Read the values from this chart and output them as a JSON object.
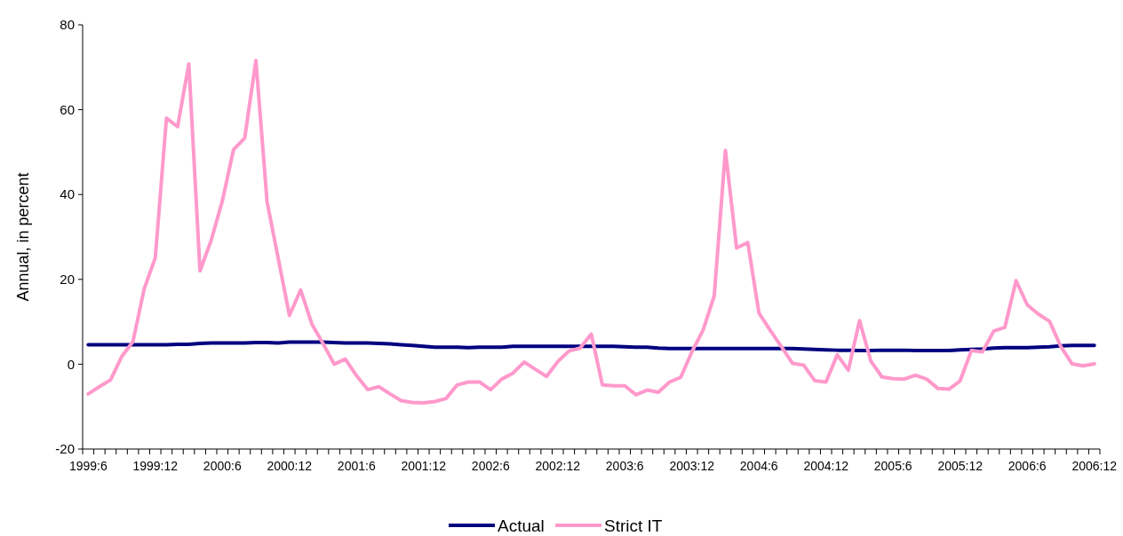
{
  "chart_data": {
    "type": "line",
    "ylabel": "Annual, in percent",
    "categories": [
      "1999:6",
      null,
      null,
      null,
      null,
      null,
      "1999:12",
      null,
      null,
      null,
      null,
      null,
      "2000:6",
      null,
      null,
      null,
      null,
      null,
      "2000:12",
      null,
      null,
      null,
      null,
      null,
      "2001:6",
      null,
      null,
      null,
      null,
      null,
      "2001:12",
      null,
      null,
      null,
      null,
      null,
      "2002:6",
      null,
      null,
      null,
      null,
      null,
      "2002:12",
      null,
      null,
      null,
      null,
      null,
      "2003:6",
      null,
      null,
      null,
      null,
      null,
      "2003:12",
      null,
      null,
      null,
      null,
      null,
      "2004:6",
      null,
      null,
      null,
      null,
      null,
      "2004:12",
      null,
      null,
      null,
      null,
      null,
      "2005:6",
      null,
      null,
      null,
      null,
      null,
      "2005:12",
      null,
      null,
      null,
      null,
      null,
      "2006:6",
      null,
      null,
      null,
      null,
      null,
      "2006:12"
    ],
    "series": [
      {
        "name": "Actual",
        "color": "#000080",
        "values": [
          4.6,
          4.6,
          4.6,
          4.6,
          4.6,
          4.6,
          4.6,
          4.6,
          4.7,
          4.7,
          4.9,
          5.0,
          5.0,
          5.0,
          5.0,
          5.1,
          5.1,
          5.0,
          5.2,
          5.2,
          5.2,
          5.2,
          5.1,
          5.0,
          5.0,
          5.0,
          4.9,
          4.8,
          4.6,
          4.4,
          4.2,
          4.0,
          4.0,
          4.0,
          3.9,
          4.0,
          4.0,
          4.0,
          4.2,
          4.2,
          4.2,
          4.2,
          4.2,
          4.2,
          4.2,
          4.2,
          4.2,
          4.2,
          4.1,
          4.0,
          4.0,
          3.8,
          3.7,
          3.7,
          3.7,
          3.7,
          3.7,
          3.7,
          3.7,
          3.7,
          3.7,
          3.7,
          3.7,
          3.7,
          3.6,
          3.5,
          3.4,
          3.3,
          3.3,
          3.2,
          3.2,
          3.3,
          3.3,
          3.3,
          3.2,
          3.2,
          3.2,
          3.2,
          3.4,
          3.5,
          3.6,
          3.8,
          3.9,
          3.9,
          3.9,
          4.0,
          4.1,
          4.3,
          4.4,
          4.4,
          4.4
        ]
      },
      {
        "name": "Strict IT",
        "color": "#ff99cc",
        "values": [
          -7.0,
          -5.3,
          -3.7,
          1.8,
          5.3,
          17.7,
          25.1,
          58,
          56,
          70.8,
          22,
          29.2,
          38.5,
          50.6,
          53.3,
          71.6,
          38.3,
          24.9,
          11.5,
          17.5,
          9.5,
          4.9,
          0,
          1.2,
          -2.7,
          -6.0,
          -5.3,
          -7.0,
          -8.6,
          -9.0,
          -9.1,
          -8.8,
          -8.1,
          -4.9,
          -4.2,
          -4.2,
          -6.0,
          -3.5,
          -2.1,
          0.5,
          -1.2,
          -2.9,
          0.6,
          3.1,
          3.8,
          7.1,
          -4.9,
          -5.1,
          -5.1,
          -7.2,
          -6.1,
          -6.6,
          -4.2,
          -3.1,
          2.9,
          8.0,
          16.1,
          50.4,
          27.4,
          28.7,
          12.1,
          8.0,
          4.2,
          0.2,
          -0.2,
          -3.9,
          -4.2,
          2.2,
          -1.4,
          10.3,
          0.8,
          -3.0,
          -3.4,
          -3.5,
          -2.6,
          -3.5,
          -5.7,
          -5.9,
          -3.9,
          3.2,
          2.9,
          7.8,
          8.7,
          19.7,
          14.0,
          11.8,
          10.1,
          4.2,
          0.1,
          -0.4,
          0.1
        ]
      }
    ],
    "ylim": [
      -20,
      80
    ],
    "yticks": [
      -20,
      0,
      20,
      40,
      60,
      80
    ],
    "legend": "bottom",
    "line_style": "solid"
  }
}
